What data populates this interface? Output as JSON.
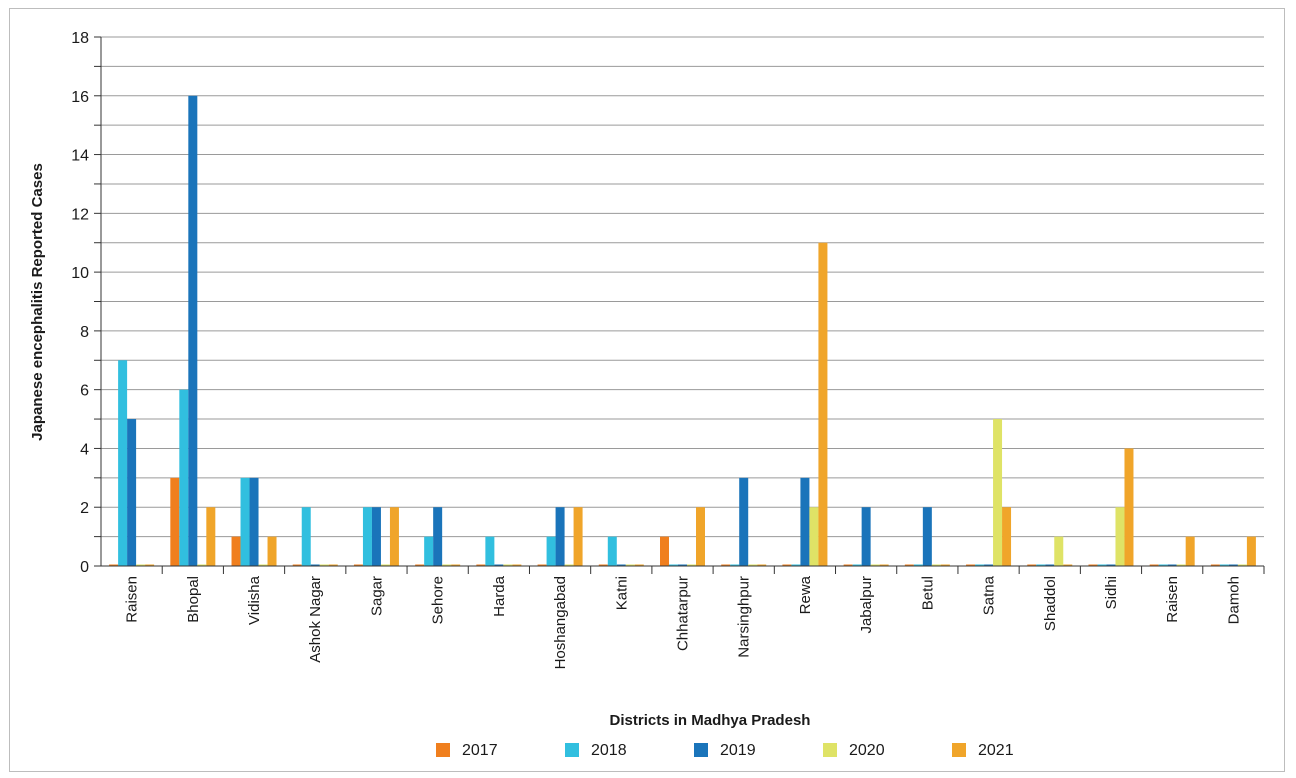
{
  "chart_data": {
    "type": "bar",
    "title": "",
    "xlabel": "Districts in Madhya Pradesh",
    "ylabel": "Japanese encephalitis Reported Cases",
    "ylim": [
      0,
      18
    ],
    "yticks": [
      "0",
      "2",
      "4",
      "6",
      "8",
      "10",
      "12",
      "14",
      "16",
      "18"
    ],
    "grid": true,
    "legend_position": "bottom",
    "categories": [
      "Raisen",
      "Bhopal",
      "Vidisha",
      "Ashok Nagar",
      "Sagar",
      "Sehore",
      "Harda",
      "Hoshangabad",
      "Katni",
      "Chhatarpur",
      "Narsinghpur",
      "Rewa",
      "Jabalpur",
      "Betul",
      "Satna",
      "Shaddol",
      "Sidhi",
      "Raisen",
      "Damoh"
    ],
    "series": [
      {
        "name": "2017",
        "color": "#f07f1e",
        "values": [
          0,
          3,
          1,
          0,
          0,
          0,
          0,
          0,
          0,
          1,
          0,
          0,
          0,
          0,
          0,
          0,
          0,
          0,
          0
        ]
      },
      {
        "name": "2018",
        "color": "#31bfdf",
        "values": [
          7,
          6,
          3,
          2,
          2,
          1,
          1,
          1,
          1,
          0,
          0,
          0,
          0,
          0,
          0,
          0,
          0,
          0,
          0
        ]
      },
      {
        "name": "2019",
        "color": "#1a74ba",
        "values": [
          5,
          16,
          3,
          0,
          2,
          2,
          0,
          2,
          0,
          0,
          3,
          3,
          2,
          2,
          0,
          0,
          0,
          0,
          0
        ]
      },
      {
        "name": "2020",
        "color": "#dfe366",
        "values": [
          0,
          0,
          0,
          0,
          0,
          0,
          0,
          0,
          0,
          0,
          0,
          2,
          0,
          0,
          5,
          1,
          2,
          0,
          0
        ]
      },
      {
        "name": "2021",
        "color": "#f0a52a",
        "values": [
          0,
          2,
          1,
          0,
          2,
          0,
          0,
          2,
          0,
          2,
          0,
          11,
          0,
          0,
          2,
          0,
          4,
          1,
          1
        ]
      }
    ]
  }
}
